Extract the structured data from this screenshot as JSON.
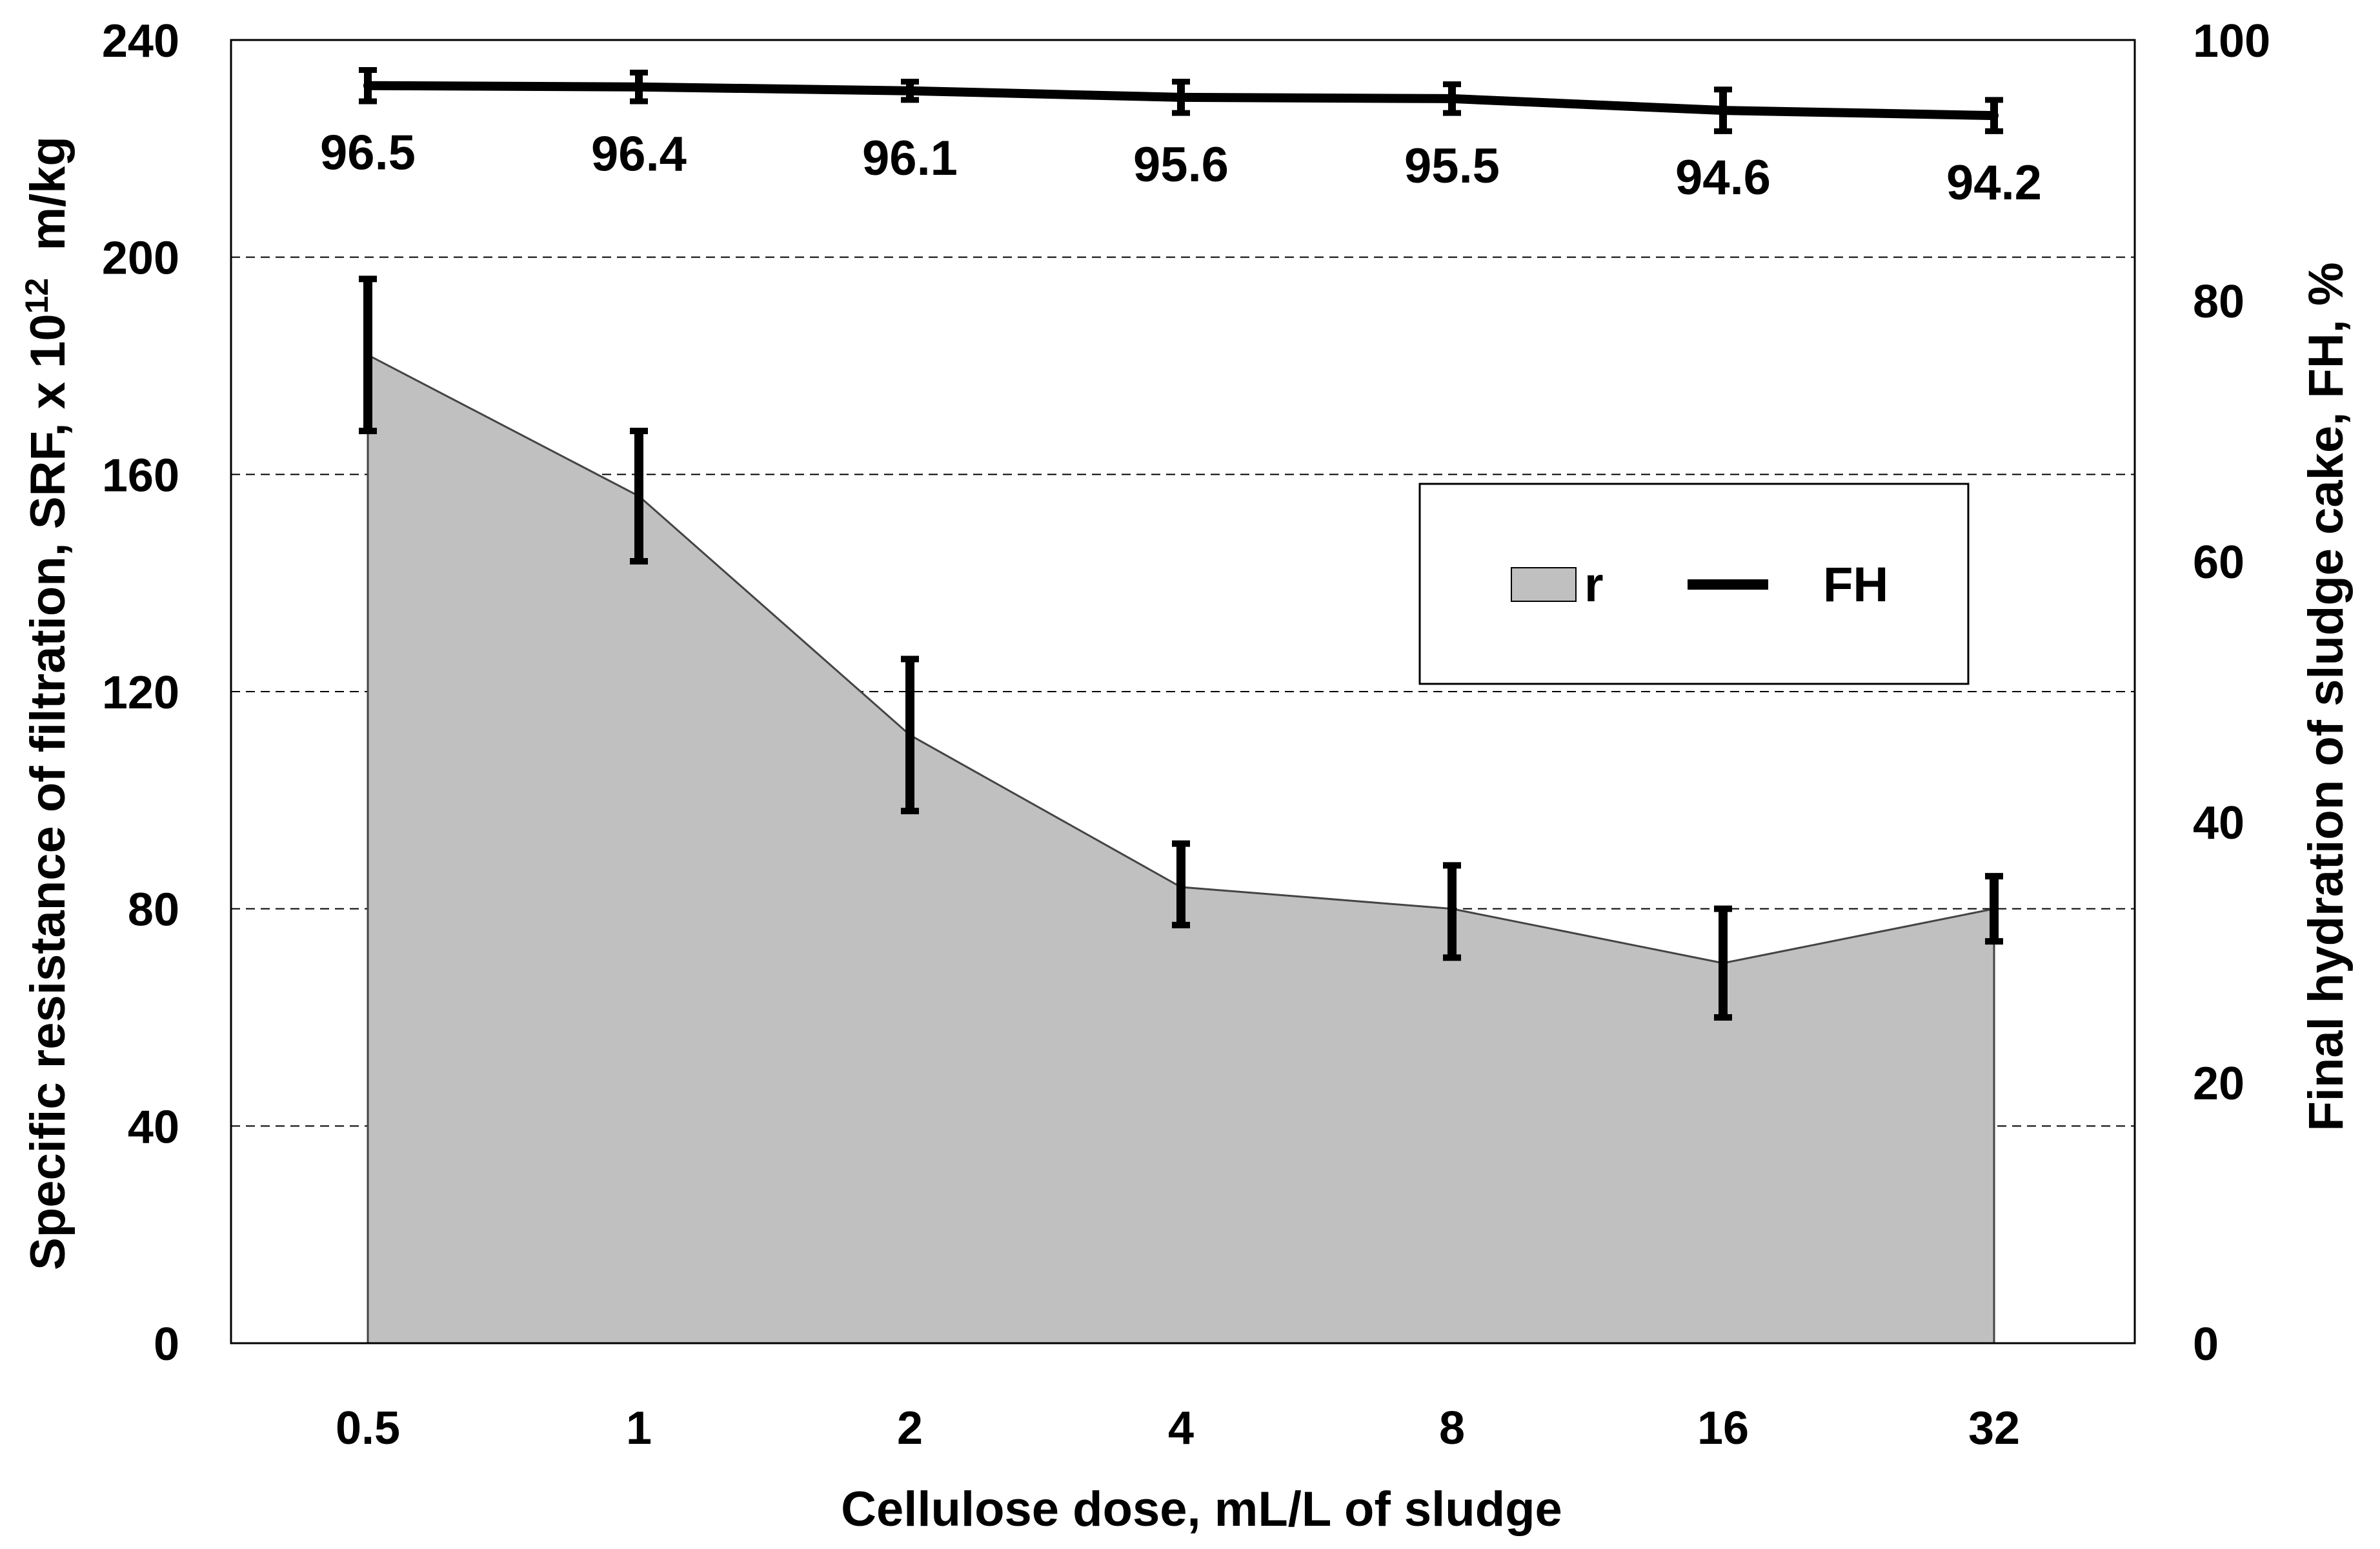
{
  "chart_data": {
    "type": "area",
    "categories": [
      "0.5",
      "1",
      "2",
      "4",
      "8",
      "16",
      "32"
    ],
    "xlabel": "Cellulose dose, mL/L of sludge",
    "ylabel_left_prefix": "Specific resistance of filtration, SRF, x 10",
    "ylabel_left_exp": "12",
    "ylabel_left_suffix": "  m/kg",
    "ylabel_right": "Final hydration of sludge cake, FH, %",
    "ylim_left": [
      0,
      240
    ],
    "yticks_left": [
      0,
      40,
      80,
      120,
      160,
      200,
      240
    ],
    "ylim_right": [
      0,
      100
    ],
    "yticks_right": [
      0,
      20,
      40,
      60,
      80,
      100
    ],
    "gridlines_left": [
      40,
      80,
      120,
      160,
      200
    ],
    "series": [
      {
        "name": "r",
        "axis": "left",
        "kind": "area",
        "color": "#c0c0c0",
        "values": [
          182,
          156,
          112,
          84,
          80,
          70,
          80
        ],
        "err_low": [
          168,
          144,
          98,
          77,
          71,
          60,
          74
        ],
        "err_high": [
          196,
          168,
          126,
          92,
          88,
          80,
          86
        ]
      },
      {
        "name": "FH",
        "axis": "right",
        "kind": "line",
        "color": "#000000",
        "values": [
          96.5,
          96.4,
          96.1,
          95.6,
          95.5,
          94.6,
          94.2
        ],
        "err": [
          1.2,
          1.1,
          0.7,
          1.2,
          1.1,
          1.6,
          1.2
        ],
        "data_labels": [
          "96.5",
          "96.4",
          "96.1",
          "95.6",
          "95.5",
          "94.6",
          "94.2"
        ]
      }
    ],
    "legend": {
      "position": "center-right",
      "entries": [
        "r",
        "FH"
      ]
    }
  }
}
